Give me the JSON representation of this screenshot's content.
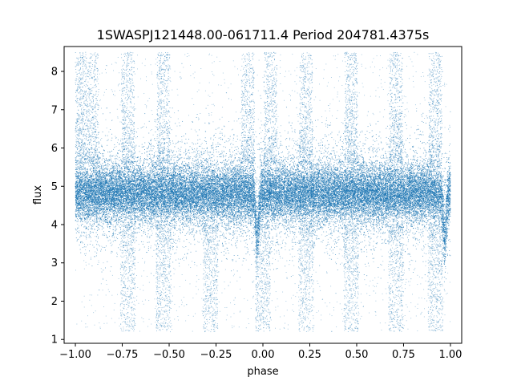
{
  "chart_data": {
    "type": "scatter",
    "title": "1SWASPJ121448.00-061711.4 Period 204781.4375s",
    "xlabel": "phase",
    "ylabel": "flux",
    "xlim": [
      -1.06,
      1.06
    ],
    "ylim": [
      0.9,
      8.65
    ],
    "x_ticks": [
      -1.0,
      -0.75,
      -0.5,
      -0.25,
      0.0,
      0.25,
      0.5,
      0.75,
      1.0
    ],
    "x_tick_labels": [
      "−1.00",
      "−0.75",
      "−0.50",
      "−0.25",
      "0.00",
      "0.25",
      "0.50",
      "0.75",
      "1.00"
    ],
    "y_ticks": [
      1,
      2,
      3,
      4,
      5,
      6,
      7,
      8
    ],
    "y_tick_labels": [
      "1",
      "2",
      "3",
      "4",
      "5",
      "6",
      "7",
      "8"
    ],
    "grid": false,
    "legend": "none",
    "series": [
      {
        "marker_color": "#1f77b4",
        "x_range": [
          -1.0,
          1.0
        ],
        "baseline_flux": 4.82,
        "core_spread": 0.35,
        "dips": [
          {
            "phase": -0.03,
            "min_flux": 3.4
          },
          {
            "phase": 0.97,
            "min_flux": 3.4
          }
        ],
        "bright_streak_phases": [
          -0.98,
          -0.91,
          -0.72,
          -0.53,
          -0.08,
          0.04,
          0.23,
          0.47,
          0.71,
          0.92
        ],
        "faint_streak_phases": [
          -0.72,
          -0.53,
          -0.28,
          0.0,
          0.23,
          0.47,
          0.71,
          0.92
        ]
      }
    ]
  }
}
